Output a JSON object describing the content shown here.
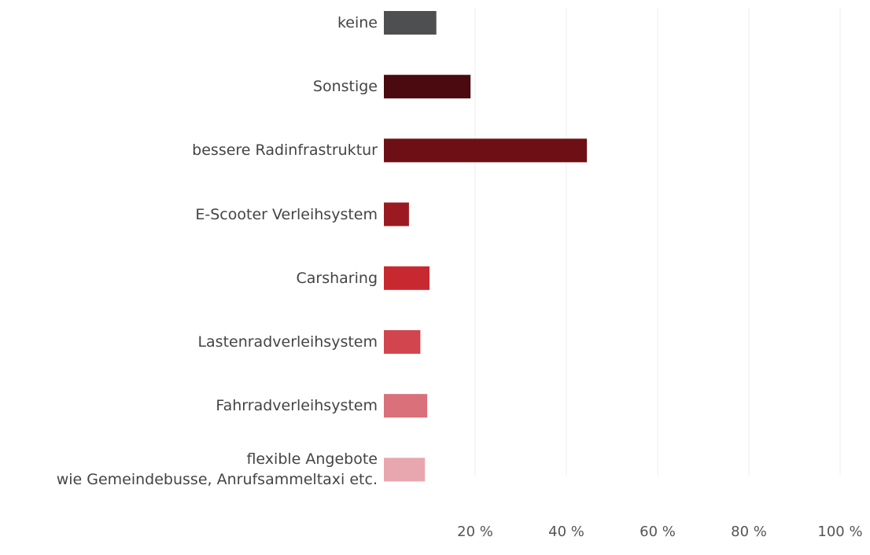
{
  "chart_data": {
    "type": "bar",
    "orientation": "horizontal",
    "categories": [
      "keine",
      "Sonstige",
      "bessere Radinfrastruktur",
      "E-Scooter Verleihsystem",
      "Carsharing",
      "Lastenradverleihsystem",
      "Fahrradverleihsystem",
      "flexible Angebote\nwie Gemeindebusse, Anrufsammeltaxi etc."
    ],
    "values": [
      11.5,
      19,
      44.5,
      5.5,
      10,
      8,
      9.5,
      9
    ],
    "colors": [
      "#4d4f51",
      "#4a0a10",
      "#6e0f16",
      "#9b1a22",
      "#c8282f",
      "#d2454e",
      "#d9707a",
      "#e8a6ae"
    ],
    "xlim": [
      0,
      100
    ],
    "xticks": [
      {
        "value": 20,
        "label": "20 %"
      },
      {
        "value": 40,
        "label": "40 %"
      },
      {
        "value": 60,
        "label": "60 %"
      },
      {
        "value": 80,
        "label": "80 %"
      },
      {
        "value": 100,
        "label": "100 %"
      }
    ],
    "grid": true
  }
}
